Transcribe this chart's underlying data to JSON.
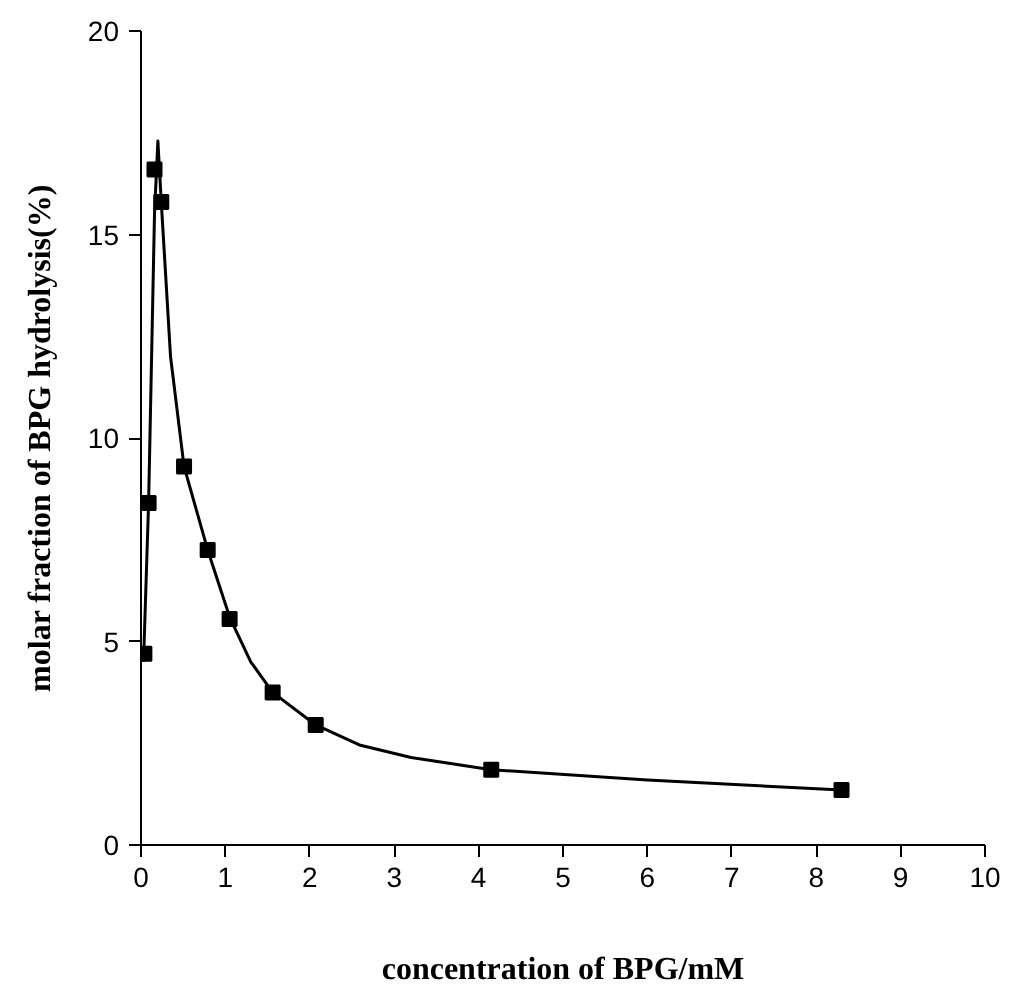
{
  "chart_data": {
    "type": "scatter",
    "xlabel": "concentration of BPG/mM",
    "ylabel": "molar fraction of BPG hydrolysis(%)",
    "xlim": [
      0,
      10
    ],
    "ylim": [
      0,
      20
    ],
    "xticks": [
      0,
      1,
      2,
      3,
      4,
      5,
      6,
      7,
      8,
      9,
      10
    ],
    "yticks": [
      0,
      5,
      10,
      15,
      20
    ],
    "grid": false,
    "marker": "square",
    "series": [
      {
        "color": "#000000",
        "x": [
          0.04,
          0.09,
          0.16,
          0.24,
          0.51,
          0.79,
          1.05,
          1.56,
          2.07,
          4.15,
          8.3
        ],
        "values": [
          4.7,
          8.4,
          16.6,
          15.8,
          9.3,
          7.25,
          5.55,
          3.75,
          2.95,
          1.85,
          1.35
        ]
      },
      {
        "type": "line",
        "color": "#000000",
        "marker": "none",
        "line_style": "solid",
        "x": [
          0.03,
          0.09,
          0.16,
          0.2,
          0.24,
          0.35,
          0.51,
          0.79,
          1.05,
          1.3,
          1.56,
          2.07,
          2.6,
          3.2,
          4.15,
          6,
          8.3
        ],
        "values": [
          4.5,
          8.4,
          15.5,
          17.3,
          15.8,
          12,
          9.3,
          7.25,
          5.6,
          4.5,
          3.75,
          2.95,
          2.45,
          2.15,
          1.85,
          1.6,
          1.35
        ]
      }
    ]
  }
}
